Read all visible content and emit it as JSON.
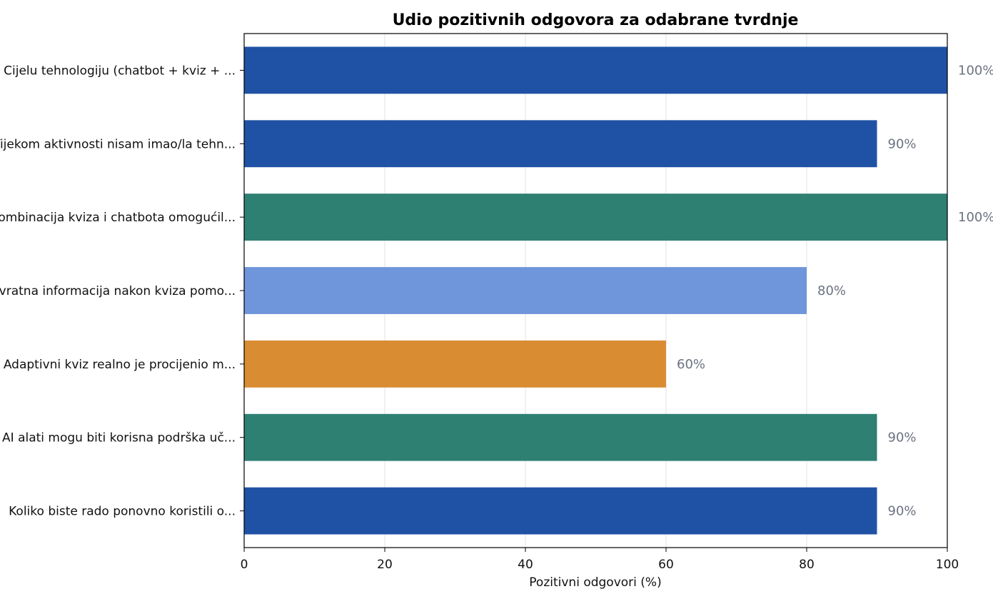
{
  "chart_data": {
    "type": "bar",
    "orientation": "horizontal",
    "title": "Udio pozitivnih odgovora za odabrane tvrdnje",
    "xlabel": "Pozitivni odgovori (%)",
    "ylabel": "",
    "xlim": [
      0,
      100
    ],
    "xticks": [
      "0",
      "20",
      "40",
      "60",
      "80",
      "100"
    ],
    "grid": "vertical",
    "categories": [
      "Cijelu tehnologiju (chatbot + kviz + ...",
      "Tijekom aktivnosti nisam imao/la tehn...",
      "Kombinacija kviza i chatbota omogućil...",
      "Povratna informacija nakon kviza pomo...",
      "Adaptivni kviz realno je procijenio m...",
      "AI alati mogu biti korisna podrška uč...",
      "Koliko biste rado ponovno koristili o..."
    ],
    "values": [
      100,
      90,
      100,
      80,
      60,
      90,
      90
    ],
    "value_labels": [
      "100%",
      "90%",
      "100%",
      "80%",
      "60%",
      "90%",
      "90%"
    ],
    "bar_colors": [
      "#1f51a5",
      "#1f51a5",
      "#2e8073",
      "#6f95db",
      "#d98c32",
      "#2e8073",
      "#1f51a5"
    ],
    "value_label_color": "#6b7280"
  }
}
